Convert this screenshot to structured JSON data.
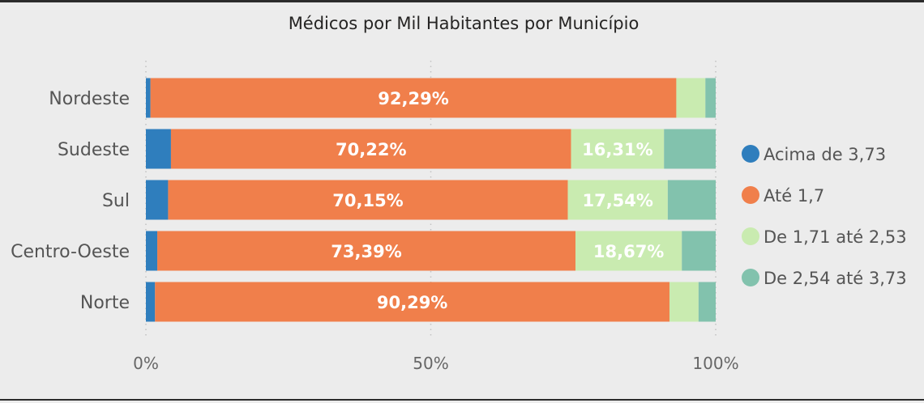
{
  "chart_data": {
    "type": "bar",
    "orientation": "horizontal",
    "stacked": "100%",
    "title": "Médicos por Mil Habitantes por Município",
    "categories": [
      "Nordeste",
      "Sudeste",
      "Sul",
      "Centro-Oeste",
      "Norte"
    ],
    "series": [
      {
        "name": "Acima de 3,73",
        "color": "#2f7ebd",
        "values": [
          0.8,
          4.4,
          3.9,
          2.0,
          1.6
        ]
      },
      {
        "name": "Até 1,7",
        "color": "#f07f4b",
        "values": [
          92.29,
          70.22,
          70.15,
          73.39,
          90.29
        ]
      },
      {
        "name": "De 1,71 até 2,53",
        "color": "#c9ebb0",
        "values": [
          5.1,
          16.31,
          17.54,
          18.67,
          5.1
        ]
      },
      {
        "name": "De 2,54 até 3,73",
        "color": "#82c2ad",
        "values": [
          1.81,
          9.07,
          8.41,
          5.94,
          3.01
        ]
      }
    ],
    "data_labels": [
      {
        "category": "Nordeste",
        "series": "Até 1,7",
        "text": "92,29%"
      },
      {
        "category": "Sudeste",
        "series": "Até 1,7",
        "text": "70,22%"
      },
      {
        "category": "Sudeste",
        "series": "De 1,71 até 2,53",
        "text": "16,31%"
      },
      {
        "category": "Sul",
        "series": "Até 1,7",
        "text": "70,15%"
      },
      {
        "category": "Sul",
        "series": "De 1,71 até 2,53",
        "text": "17,54%"
      },
      {
        "category": "Centro-Oeste",
        "series": "Até 1,7",
        "text": "73,39%"
      },
      {
        "category": "Centro-Oeste",
        "series": "De 1,71 até 2,53",
        "text": "18,67%"
      },
      {
        "category": "Norte",
        "series": "Até 1,7",
        "text": "90,29%"
      }
    ],
    "xlim": [
      0,
      100
    ],
    "x_ticks": [
      {
        "value": 0,
        "label": "0%"
      },
      {
        "value": 50,
        "label": "50%"
      },
      {
        "value": 100,
        "label": "100%"
      }
    ],
    "grid": "vertical dotted",
    "legend_position": "right"
  }
}
